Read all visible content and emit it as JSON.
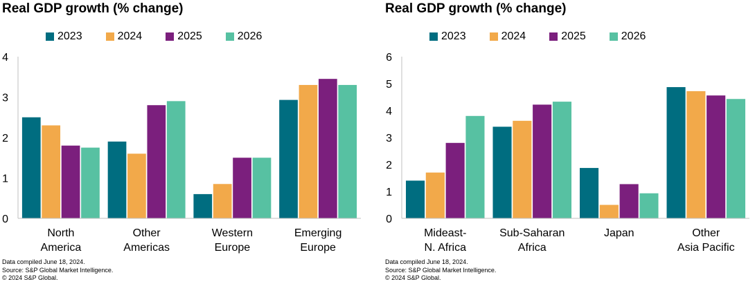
{
  "colors": {
    "2023": "#006d80",
    "2024": "#f2a94a",
    "2025": "#7b1f7d",
    "2026": "#57c1a2",
    "axis": "#bfbfbf"
  },
  "charts": [
    {
      "title": "Real GDP growth (% change)",
      "footnotes": [
        "Data compiled June 18, 2024.",
        "Source: S&P Global Market Intelligence.",
        "© 2024 S&P Global."
      ]
    },
    {
      "title": "Real GDP growth (% change)",
      "footnotes": [
        "Data compiled June 18, 2024.",
        "Source: S&P Global Market Intelligence.",
        "© 2024 S&P Global."
      ]
    }
  ],
  "chart_data": [
    {
      "type": "bar",
      "title": "Real GDP growth (% change)",
      "categories": [
        [
          "North",
          "America"
        ],
        [
          "Other",
          "Americas"
        ],
        [
          "Western",
          "Europe"
        ],
        [
          "Emerging",
          "Europe"
        ]
      ],
      "series": [
        {
          "name": "2023",
          "values": [
            2.5,
            1.9,
            0.6,
            2.93
          ]
        },
        {
          "name": "2024",
          "values": [
            2.3,
            1.6,
            0.85,
            3.3
          ]
        },
        {
          "name": "2025",
          "values": [
            1.8,
            2.8,
            1.5,
            3.45
          ]
        },
        {
          "name": "2026",
          "values": [
            1.75,
            2.9,
            1.5,
            3.3
          ]
        }
      ],
      "ylim": [
        0,
        4
      ],
      "yticks": [
        0,
        1,
        2,
        3,
        4
      ],
      "legend": "top",
      "grid": false
    },
    {
      "type": "bar",
      "title": "Real GDP growth (% change)",
      "categories": [
        [
          "Mideast-",
          "N. Africa"
        ],
        [
          "Sub-Saharan",
          "Africa"
        ],
        [
          "Japan"
        ],
        [
          "Other",
          "Asia Pacific"
        ]
      ],
      "series": [
        {
          "name": "2023",
          "values": [
            1.4,
            3.4,
            1.87,
            4.87
          ]
        },
        {
          "name": "2024",
          "values": [
            1.7,
            3.62,
            0.5,
            4.72
          ]
        },
        {
          "name": "2025",
          "values": [
            2.8,
            4.22,
            1.27,
            4.56
          ]
        },
        {
          "name": "2026",
          "values": [
            3.8,
            4.33,
            0.93,
            4.43
          ]
        }
      ],
      "ylim": [
        0,
        6
      ],
      "yticks": [
        0,
        1,
        2,
        3,
        4,
        5,
        6
      ],
      "legend": "top",
      "grid": false
    }
  ]
}
